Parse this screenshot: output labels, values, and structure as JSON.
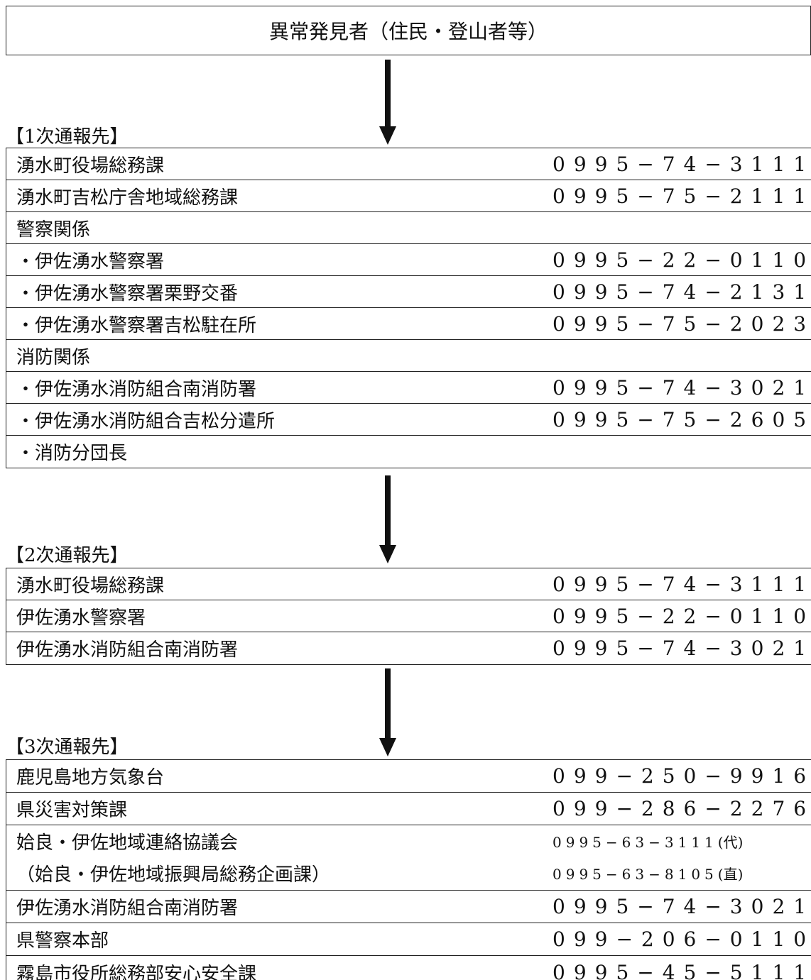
{
  "origin": "異常発見者（住民・登山者等）",
  "sections": [
    {
      "label": "【1次通報先】",
      "rows": [
        {
          "name": "湧水町役場総務課",
          "phone": "0995−74−3111"
        },
        {
          "name": "湧水町吉松庁舎地域総務課",
          "phone": "0995−75−2111"
        },
        {
          "name": "警察関係",
          "phone": ""
        },
        {
          "name": "・伊佐湧水警察署",
          "phone": "0995−22−0110"
        },
        {
          "name": "・伊佐湧水警察署栗野交番",
          "phone": "0995−74−2131"
        },
        {
          "name": "・伊佐湧水警察署吉松駐在所",
          "phone": "0995−75−2023"
        },
        {
          "name": "消防関係",
          "phone": ""
        },
        {
          "name": "・伊佐湧水消防組合南消防署",
          "phone": "0995−74−3021"
        },
        {
          "name": "・伊佐湧水消防組合吉松分遣所",
          "phone": "0995−75−2605"
        },
        {
          "name": "・消防分団長",
          "phone": ""
        }
      ]
    },
    {
      "label": "【2次通報先】",
      "rows": [
        {
          "name": "湧水町役場総務課",
          "phone": "0995−74−3111"
        },
        {
          "name": "伊佐湧水警察署",
          "phone": "0995−22−0110"
        },
        {
          "name": "伊佐湧水消防組合南消防署",
          "phone": "0995−74−3021"
        }
      ]
    },
    {
      "label": "【3次通報先】",
      "rows": [
        {
          "name": "鹿児島地方気象台",
          "phone": "099−250−9916"
        },
        {
          "name": "県災害対策課",
          "phone": "099−286−2276"
        },
        {
          "name": "姶良・伊佐地域連絡協議会",
          "name2": "（姶良・伊佐地域振興局総務企画課）",
          "phone": "0995−63−3111",
          "phone_suffix": "(代)",
          "phone2": "0995−63−8105",
          "phone2_suffix": "(直)"
        },
        {
          "name": "伊佐湧水消防組合南消防署",
          "phone": "0995−74−3021"
        },
        {
          "name": "県警察本部",
          "phone": "099−206−0110"
        },
        {
          "name": "霧島市役所総務部安心安全課",
          "phone": "0995−45−5111"
        }
      ]
    }
  ]
}
